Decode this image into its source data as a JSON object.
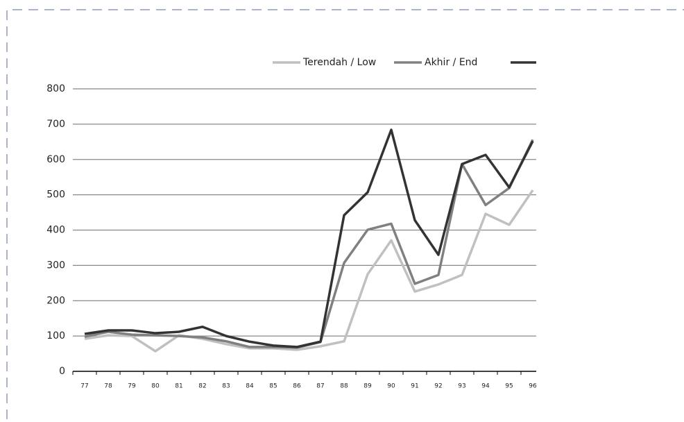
{
  "chart_data": {
    "type": "line",
    "categories": [
      "77",
      "78",
      "79",
      "80",
      "81",
      "82",
      "83",
      "84",
      "85",
      "86",
      "87",
      "88",
      "89",
      "90",
      "91",
      "92",
      "93",
      "94",
      "95",
      "96"
    ],
    "series": [
      {
        "name": "Terendah / Low",
        "color": "#c0c0c0",
        "values": [
          92,
          102,
          100,
          57,
          102,
          92,
          77,
          65,
          65,
          61,
          71,
          85,
          275,
          371,
          226,
          246,
          273,
          446,
          415,
          513
        ]
      },
      {
        "name": "Akhir / End",
        "color": "#808080",
        "values": [
          98,
          112,
          104,
          102,
          100,
          96,
          85,
          69,
          69,
          67,
          83,
          307,
          401,
          418,
          248,
          273,
          587,
          471,
          519,
          656
        ]
      },
      {
        "color": "#333333",
        "values": [
          106,
          116,
          116,
          108,
          112,
          126,
          100,
          84,
          73,
          69,
          84,
          442,
          507,
          684,
          428,
          330,
          587,
          613,
          521,
          652
        ]
      }
    ],
    "ylim": [
      0,
      800
    ],
    "yticks": [
      0,
      100,
      200,
      300,
      400,
      500,
      600,
      700,
      800
    ],
    "grid": true
  }
}
